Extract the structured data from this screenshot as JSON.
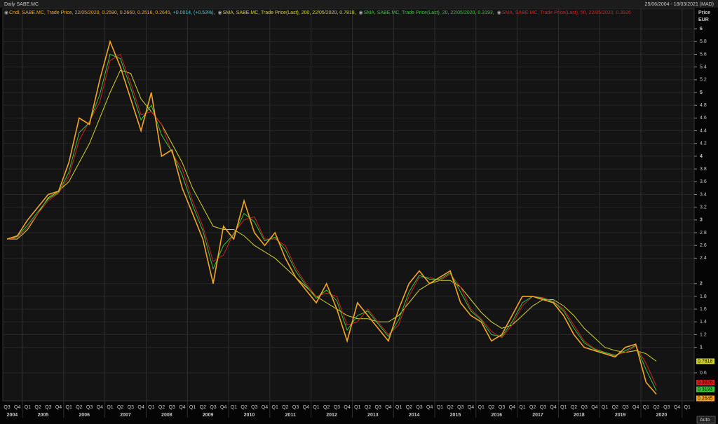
{
  "chart_data": {
    "type": "line",
    "title": "Daily SABE.MC",
    "date_range": "25/06/2004 - 18/03/2021 (MAD)",
    "y_axis_label": "Price",
    "y_axis_unit": "EUR",
    "scale_mode": "Auto",
    "grid": true,
    "categories": [
      "Q3",
      "Q4",
      "Q1",
      "Q2",
      "Q3",
      "Q4",
      "Q1",
      "Q2",
      "Q3",
      "Q4",
      "Q1",
      "Q2",
      "Q3",
      "Q4",
      "Q1",
      "Q2",
      "Q3",
      "Q4",
      "Q1",
      "Q2",
      "Q3",
      "Q4",
      "Q1",
      "Q2",
      "Q3",
      "Q4",
      "Q1",
      "Q2",
      "Q3",
      "Q4",
      "Q1",
      "Q2",
      "Q3",
      "Q4",
      "Q1",
      "Q2",
      "Q3",
      "Q4",
      "Q1",
      "Q2",
      "Q3",
      "Q4",
      "Q1",
      "Q2",
      "Q3",
      "Q4",
      "Q1",
      "Q2",
      "Q3",
      "Q4",
      "Q1",
      "Q2",
      "Q3",
      "Q4",
      "Q1",
      "Q2",
      "Q3",
      "Q4",
      "Q1",
      "Q2",
      "Q3",
      "Q4",
      "Q1",
      "Q2",
      "Q3",
      "Q4",
      "Q1"
    ],
    "years": [
      "2004",
      "2005",
      "2006",
      "2007",
      "2008",
      "2009",
      "2010",
      "2011",
      "2012",
      "2013",
      "2014",
      "2015",
      "2016",
      "2017",
      "2018",
      "2019",
      "2020"
    ],
    "ylim": [
      0.16,
      6.32
    ],
    "yticks": [
      0.6,
      1,
      1.2,
      1.4,
      1.6,
      1.8,
      2,
      2.4,
      2.6,
      2.8,
      3,
      3.2,
      3.4,
      3.6,
      3.8,
      4,
      4.2,
      4.4,
      4.6,
      4.8,
      5,
      5.2,
      5.4,
      5.6,
      5.8,
      6
    ],
    "series": [
      {
        "name": "Cndl, SABE.MC, Trade Price, 22/05/2020, 0.2590, 0.2660, 0.2516, 0.2645,",
        "change_text": "+0.0014, (+0.53%),",
        "change_color": "#3fd0e0",
        "color": "#f5a623",
        "values": [
          2.7,
          2.75,
          3.0,
          3.2,
          3.4,
          3.45,
          3.9,
          4.6,
          4.5,
          5.2,
          5.8,
          5.4,
          4.9,
          4.4,
          5.0,
          4.0,
          4.1,
          3.5,
          3.1,
          2.7,
          2.0,
          2.9,
          2.7,
          3.3,
          2.8,
          2.6,
          2.8,
          2.4,
          2.1,
          1.9,
          1.7,
          2.0,
          1.6,
          1.1,
          1.7,
          1.5,
          1.3,
          1.1,
          1.6,
          2.0,
          2.2,
          2.0,
          2.1,
          2.2,
          1.7,
          1.5,
          1.4,
          1.1,
          1.2,
          1.5,
          1.8,
          1.8,
          1.75,
          1.7,
          1.5,
          1.2,
          1.0,
          0.95,
          0.9,
          0.85,
          1.0,
          1.05,
          0.45,
          0.2645,
          null,
          null,
          null
        ]
      },
      {
        "name": "SMA, SABE.MC, Trade Price(Last),  200,  22/05/2020, 0.7818,",
        "color": "#d4d42a",
        "values": [
          2.7,
          2.7,
          2.85,
          3.1,
          3.35,
          3.45,
          3.6,
          3.9,
          4.2,
          4.6,
          5.0,
          5.35,
          5.3,
          4.9,
          4.7,
          4.5,
          4.2,
          3.9,
          3.5,
          3.2,
          2.9,
          2.85,
          2.85,
          2.75,
          2.6,
          2.5,
          2.4,
          2.25,
          2.1,
          1.95,
          1.8,
          1.7,
          1.6,
          1.5,
          1.45,
          1.45,
          1.4,
          1.4,
          1.5,
          1.7,
          1.9,
          2.0,
          2.05,
          2.05,
          1.95,
          1.75,
          1.55,
          1.4,
          1.3,
          1.35,
          1.5,
          1.65,
          1.75,
          1.75,
          1.65,
          1.5,
          1.3,
          1.15,
          1.0,
          0.95,
          0.92,
          0.95,
          0.9,
          0.7818,
          null,
          null,
          null
        ]
      },
      {
        "name": "SMA, SABE.MC, Trade Price(Last),  20,  22/05/2020, 0.3193,",
        "color": "#3cc43c",
        "values": [
          2.7,
          2.74,
          2.92,
          3.13,
          3.33,
          3.43,
          3.75,
          4.37,
          4.53,
          4.97,
          5.6,
          5.53,
          5.07,
          4.57,
          4.8,
          4.33,
          4.07,
          3.7,
          3.23,
          2.83,
          2.23,
          2.6,
          2.77,
          3.1,
          2.97,
          2.67,
          2.73,
          2.53,
          2.2,
          1.97,
          1.77,
          1.9,
          1.73,
          1.27,
          1.5,
          1.57,
          1.37,
          1.17,
          1.43,
          1.87,
          2.13,
          2.07,
          2.07,
          2.17,
          1.87,
          1.57,
          1.43,
          1.2,
          1.17,
          1.4,
          1.7,
          1.8,
          1.77,
          1.72,
          1.57,
          1.3,
          1.07,
          0.97,
          0.92,
          0.87,
          0.95,
          1.03,
          0.65,
          0.3193,
          null,
          null,
          null
        ]
      },
      {
        "name": "SMA, SABE.MC, Trade Price(Last),  50,  22/05/2020, 0.3926",
        "color": "#d42020",
        "values": [
          2.7,
          2.72,
          2.88,
          3.1,
          3.3,
          3.42,
          3.68,
          4.25,
          4.55,
          4.85,
          5.5,
          5.6,
          5.15,
          4.65,
          4.7,
          4.5,
          4.05,
          3.8,
          3.3,
          2.9,
          2.35,
          2.45,
          2.8,
          3.0,
          3.05,
          2.7,
          2.7,
          2.6,
          2.25,
          2.0,
          1.8,
          1.85,
          1.8,
          1.35,
          1.4,
          1.6,
          1.4,
          1.2,
          1.35,
          1.8,
          2.1,
          2.1,
          2.05,
          2.15,
          1.95,
          1.6,
          1.45,
          1.25,
          1.15,
          1.35,
          1.65,
          1.8,
          1.78,
          1.72,
          1.6,
          1.35,
          1.1,
          0.98,
          0.92,
          0.88,
          0.92,
          1.02,
          0.75,
          0.3926,
          null,
          null,
          null
        ]
      }
    ]
  }
}
